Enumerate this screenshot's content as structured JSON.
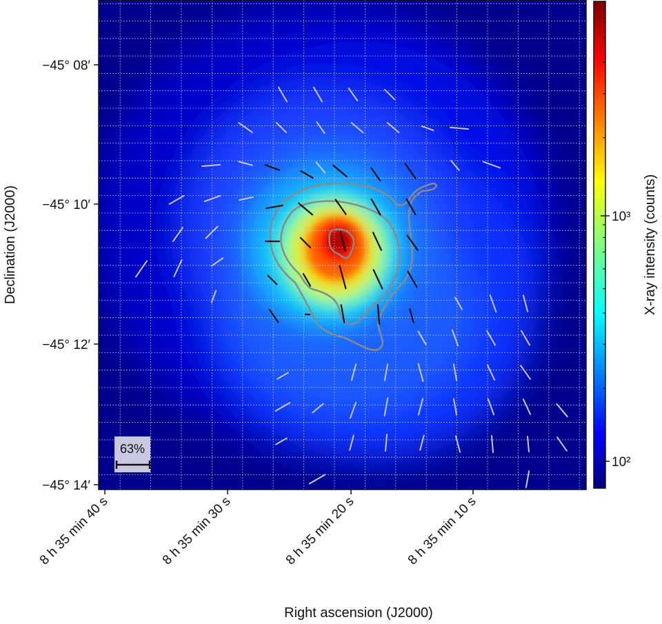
{
  "chart_data": {
    "type": "heatmap",
    "xlabel": "Right ascension (J2000)",
    "ylabel": "Declination (J2000)",
    "colorbar_label": "X-ray intensity (counts)",
    "x_ticks": [
      "8 h 35 min 40 s",
      "8 h 35 min 30 s",
      "8 h 35 min 20 s",
      "8 h 35 min 10 s"
    ],
    "y_ticks": [
      "−45° 08′",
      "−45° 10′",
      "−45° 12′",
      "−45° 14′"
    ],
    "colorbar_ticks": [
      {
        "label": "10²",
        "value": 100
      },
      {
        "label": "10³",
        "value": 1000
      }
    ],
    "colorbar_range": [
      80,
      7000
    ],
    "colorbar_scale": "log",
    "colormap": "jet",
    "grid": true,
    "scale_bar_label": "63%",
    "peak": {
      "ra": "8 h 35 min 20.7 s",
      "dec": "−45° 10′ 29″"
    }
  },
  "colors": {
    "background_low": "#00008f",
    "contour": "#8a8a8a",
    "vector_inner": "#111111",
    "vector_outer": "#c8c8d8",
    "grid": "#c8d0ee"
  }
}
